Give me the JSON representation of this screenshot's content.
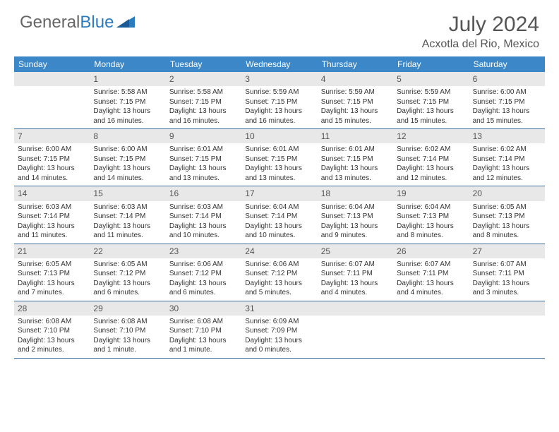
{
  "brand": {
    "part1": "General",
    "part2": "Blue"
  },
  "title": "July 2024",
  "location": "Acxotla del Rio, Mexico",
  "colors": {
    "header_bg": "#3b87c8",
    "header_text": "#ffffff",
    "daynum_bg": "#e8e8e8",
    "border": "#3b6ea0",
    "text": "#333333",
    "title_text": "#555555"
  },
  "day_names": [
    "Sunday",
    "Monday",
    "Tuesday",
    "Wednesday",
    "Thursday",
    "Friday",
    "Saturday"
  ],
  "weeks": [
    [
      {
        "n": "",
        "lines": []
      },
      {
        "n": "1",
        "lines": [
          "Sunrise: 5:58 AM",
          "Sunset: 7:15 PM",
          "Daylight: 13 hours and 16 minutes."
        ]
      },
      {
        "n": "2",
        "lines": [
          "Sunrise: 5:58 AM",
          "Sunset: 7:15 PM",
          "Daylight: 13 hours and 16 minutes."
        ]
      },
      {
        "n": "3",
        "lines": [
          "Sunrise: 5:59 AM",
          "Sunset: 7:15 PM",
          "Daylight: 13 hours and 16 minutes."
        ]
      },
      {
        "n": "4",
        "lines": [
          "Sunrise: 5:59 AM",
          "Sunset: 7:15 PM",
          "Daylight: 13 hours and 15 minutes."
        ]
      },
      {
        "n": "5",
        "lines": [
          "Sunrise: 5:59 AM",
          "Sunset: 7:15 PM",
          "Daylight: 13 hours and 15 minutes."
        ]
      },
      {
        "n": "6",
        "lines": [
          "Sunrise: 6:00 AM",
          "Sunset: 7:15 PM",
          "Daylight: 13 hours and 15 minutes."
        ]
      }
    ],
    [
      {
        "n": "7",
        "lines": [
          "Sunrise: 6:00 AM",
          "Sunset: 7:15 PM",
          "Daylight: 13 hours and 14 minutes."
        ]
      },
      {
        "n": "8",
        "lines": [
          "Sunrise: 6:00 AM",
          "Sunset: 7:15 PM",
          "Daylight: 13 hours and 14 minutes."
        ]
      },
      {
        "n": "9",
        "lines": [
          "Sunrise: 6:01 AM",
          "Sunset: 7:15 PM",
          "Daylight: 13 hours and 13 minutes."
        ]
      },
      {
        "n": "10",
        "lines": [
          "Sunrise: 6:01 AM",
          "Sunset: 7:15 PM",
          "Daylight: 13 hours and 13 minutes."
        ]
      },
      {
        "n": "11",
        "lines": [
          "Sunrise: 6:01 AM",
          "Sunset: 7:15 PM",
          "Daylight: 13 hours and 13 minutes."
        ]
      },
      {
        "n": "12",
        "lines": [
          "Sunrise: 6:02 AM",
          "Sunset: 7:14 PM",
          "Daylight: 13 hours and 12 minutes."
        ]
      },
      {
        "n": "13",
        "lines": [
          "Sunrise: 6:02 AM",
          "Sunset: 7:14 PM",
          "Daylight: 13 hours and 12 minutes."
        ]
      }
    ],
    [
      {
        "n": "14",
        "lines": [
          "Sunrise: 6:03 AM",
          "Sunset: 7:14 PM",
          "Daylight: 13 hours and 11 minutes."
        ]
      },
      {
        "n": "15",
        "lines": [
          "Sunrise: 6:03 AM",
          "Sunset: 7:14 PM",
          "Daylight: 13 hours and 11 minutes."
        ]
      },
      {
        "n": "16",
        "lines": [
          "Sunrise: 6:03 AM",
          "Sunset: 7:14 PM",
          "Daylight: 13 hours and 10 minutes."
        ]
      },
      {
        "n": "17",
        "lines": [
          "Sunrise: 6:04 AM",
          "Sunset: 7:14 PM",
          "Daylight: 13 hours and 10 minutes."
        ]
      },
      {
        "n": "18",
        "lines": [
          "Sunrise: 6:04 AM",
          "Sunset: 7:13 PM",
          "Daylight: 13 hours and 9 minutes."
        ]
      },
      {
        "n": "19",
        "lines": [
          "Sunrise: 6:04 AM",
          "Sunset: 7:13 PM",
          "Daylight: 13 hours and 8 minutes."
        ]
      },
      {
        "n": "20",
        "lines": [
          "Sunrise: 6:05 AM",
          "Sunset: 7:13 PM",
          "Daylight: 13 hours and 8 minutes."
        ]
      }
    ],
    [
      {
        "n": "21",
        "lines": [
          "Sunrise: 6:05 AM",
          "Sunset: 7:13 PM",
          "Daylight: 13 hours and 7 minutes."
        ]
      },
      {
        "n": "22",
        "lines": [
          "Sunrise: 6:05 AM",
          "Sunset: 7:12 PM",
          "Daylight: 13 hours and 6 minutes."
        ]
      },
      {
        "n": "23",
        "lines": [
          "Sunrise: 6:06 AM",
          "Sunset: 7:12 PM",
          "Daylight: 13 hours and 6 minutes."
        ]
      },
      {
        "n": "24",
        "lines": [
          "Sunrise: 6:06 AM",
          "Sunset: 7:12 PM",
          "Daylight: 13 hours and 5 minutes."
        ]
      },
      {
        "n": "25",
        "lines": [
          "Sunrise: 6:07 AM",
          "Sunset: 7:11 PM",
          "Daylight: 13 hours and 4 minutes."
        ]
      },
      {
        "n": "26",
        "lines": [
          "Sunrise: 6:07 AM",
          "Sunset: 7:11 PM",
          "Daylight: 13 hours and 4 minutes."
        ]
      },
      {
        "n": "27",
        "lines": [
          "Sunrise: 6:07 AM",
          "Sunset: 7:11 PM",
          "Daylight: 13 hours and 3 minutes."
        ]
      }
    ],
    [
      {
        "n": "28",
        "lines": [
          "Sunrise: 6:08 AM",
          "Sunset: 7:10 PM",
          "Daylight: 13 hours and 2 minutes."
        ]
      },
      {
        "n": "29",
        "lines": [
          "Sunrise: 6:08 AM",
          "Sunset: 7:10 PM",
          "Daylight: 13 hours and 1 minute."
        ]
      },
      {
        "n": "30",
        "lines": [
          "Sunrise: 6:08 AM",
          "Sunset: 7:10 PM",
          "Daylight: 13 hours and 1 minute."
        ]
      },
      {
        "n": "31",
        "lines": [
          "Sunrise: 6:09 AM",
          "Sunset: 7:09 PM",
          "Daylight: 13 hours and 0 minutes."
        ]
      },
      {
        "n": "",
        "lines": []
      },
      {
        "n": "",
        "lines": []
      },
      {
        "n": "",
        "lines": []
      }
    ]
  ]
}
